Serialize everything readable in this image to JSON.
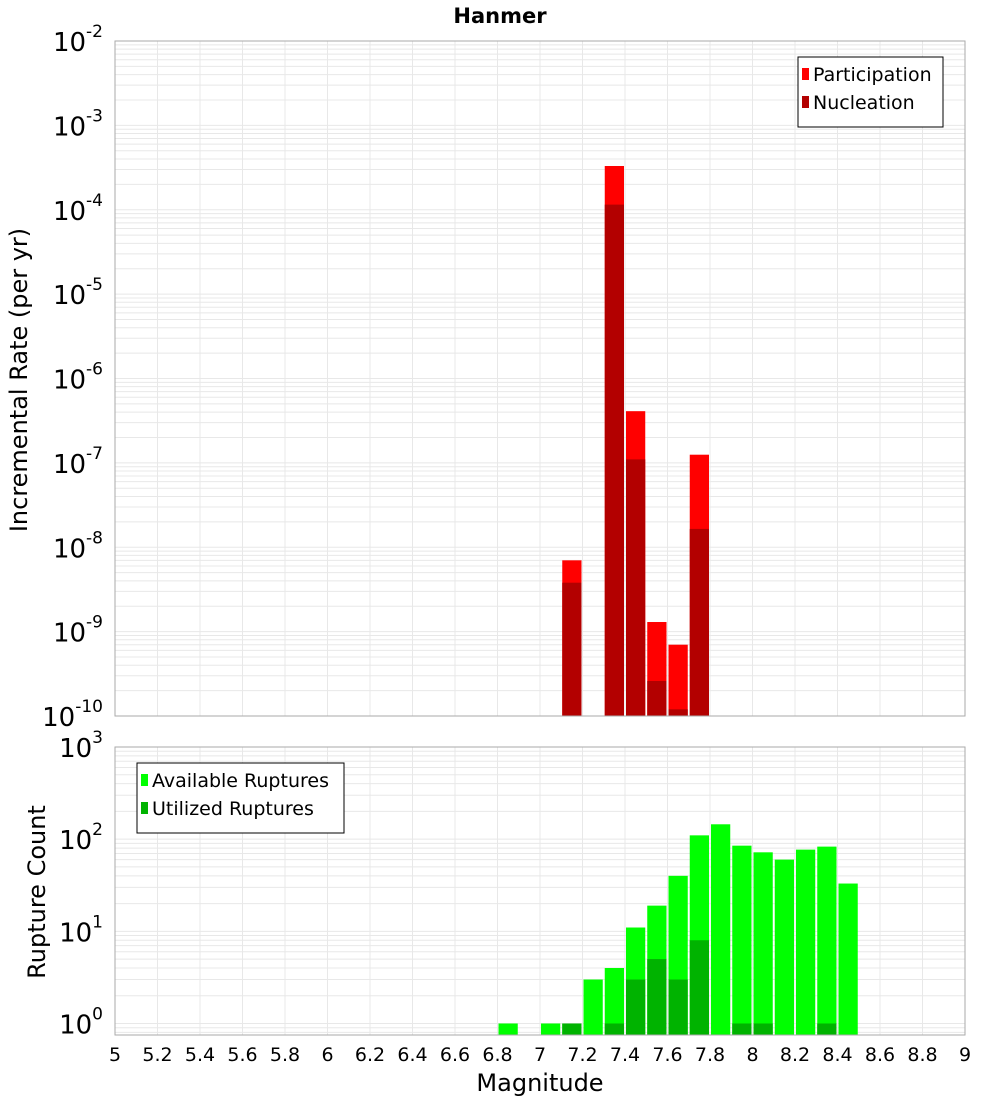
{
  "title": "Hanmer",
  "colors": {
    "participation": "#ff0000",
    "nucleation": "#b30000",
    "available": "#00ff00",
    "utilized": "#00b300",
    "grid": "#e8e8e8",
    "frame": "#aaaaaa"
  },
  "x_axis": {
    "label": "Magnitude",
    "ticks": [
      "5",
      "5.2",
      "5.4",
      "5.6",
      "5.8",
      "6",
      "6.2",
      "6.4",
      "6.6",
      "6.8",
      "7",
      "7.2",
      "7.4",
      "7.6",
      "7.8",
      "8",
      "8.2",
      "8.4",
      "8.6",
      "8.8",
      "9"
    ]
  },
  "chart_data": [
    {
      "type": "bar",
      "panel": "top",
      "ylabel": "Incremental Rate (per yr)",
      "yscale": "log",
      "xlim": [
        5,
        9
      ],
      "ylim": [
        1e-10,
        0.01
      ],
      "y_tick_exponents": [
        "-10",
        "-9",
        "-8",
        "-7",
        "-6",
        "-5",
        "-4",
        "-3",
        "-2"
      ],
      "grid": true,
      "legend_position": "top-right",
      "bin_width": 0.1,
      "series": [
        {
          "name": "Participation",
          "color_key": "participation",
          "x": [
            7.15,
            7.35,
            7.45,
            7.55,
            7.65,
            7.75
          ],
          "values": [
            7e-09,
            0.00033,
            4.1e-07,
            1.3e-09,
            7e-10,
            1.25e-07
          ]
        },
        {
          "name": "Nucleation",
          "color_key": "nucleation",
          "x": [
            7.15,
            7.35,
            7.45,
            7.55,
            7.65,
            7.75
          ],
          "values": [
            3.8e-09,
            0.000115,
            1.1e-07,
            2.6e-10,
            1.2e-10,
            1.65e-08
          ]
        }
      ]
    },
    {
      "type": "bar",
      "panel": "bottom",
      "ylabel": "Rupture Count",
      "yscale": "log",
      "xlim": [
        5,
        9
      ],
      "ylim": [
        0.75,
        1000
      ],
      "y_tick_exponents": [
        "0",
        "1",
        "2",
        "3"
      ],
      "grid": true,
      "legend_position": "top-left",
      "bin_width": 0.1,
      "series": [
        {
          "name": "Available Ruptures",
          "color_key": "available",
          "x": [
            6.85,
            7.05,
            7.15,
            7.25,
            7.35,
            7.45,
            7.55,
            7.65,
            7.75,
            7.85,
            7.95,
            8.05,
            8.15,
            8.25,
            8.35,
            8.45
          ],
          "values": [
            1,
            1,
            1,
            3,
            4,
            11,
            19,
            40,
            110,
            145,
            85,
            72,
            60,
            77,
            83,
            33
          ]
        },
        {
          "name": "Utilized Ruptures",
          "color_key": "utilized",
          "x": [
            7.15,
            7.35,
            7.45,
            7.55,
            7.65,
            7.75,
            7.95,
            8.05,
            8.35
          ],
          "values": [
            1,
            1,
            3,
            5,
            3,
            8,
            1,
            1,
            1
          ]
        }
      ]
    }
  ]
}
